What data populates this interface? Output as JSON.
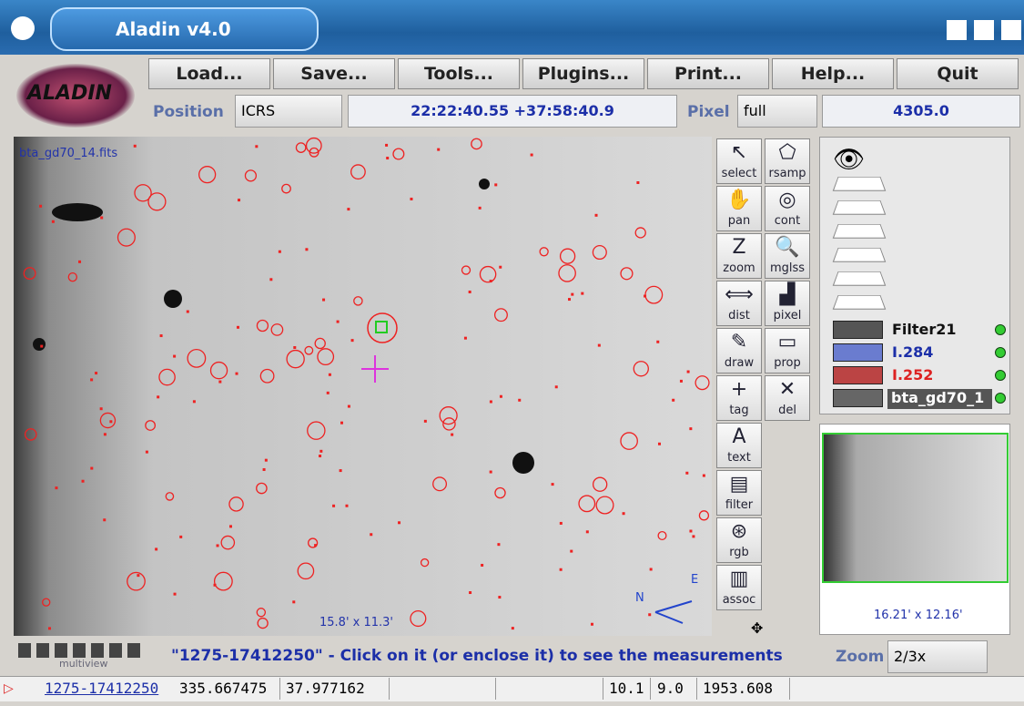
{
  "window": {
    "title": "Aladin v4.0"
  },
  "menu": [
    "Load...",
    "Save...",
    "Tools...",
    "Plugins...",
    "Print...",
    "Help...",
    "Quit"
  ],
  "logo": "ALADIN",
  "position": {
    "label": "Position",
    "frame": "ICRS",
    "coordinates": "22:22:40.55 +37:58:40.9"
  },
  "pixel": {
    "label": "Pixel",
    "mode": "full",
    "value": "4305.0"
  },
  "view": {
    "filename": "bta_gd70_14.fits",
    "size": "15.8' x 11.3'",
    "north": "N",
    "east": "E"
  },
  "tools": [
    "select",
    "rsamp",
    "pan",
    "cont",
    "zoom",
    "mglss",
    "dist",
    "pixel",
    "draw",
    "prop",
    "tag",
    "del",
    "text",
    "filter",
    "rgb",
    "assoc"
  ],
  "layers": [
    "Filter21",
    "I.284",
    "I.252",
    "bta_gd70_1"
  ],
  "preview": {
    "size": "16.21' x 12.16'"
  },
  "multiview": "multiview",
  "status": "\"1275-17412250\" - Click on it (or enclose it) to see the measurements",
  "zoom": {
    "label": "Zoom",
    "value": "2/3x"
  },
  "measurement": [
    "1275-17412250",
    "335.667475",
    "37.977162",
    "10.1",
    "9.0",
    "1953.608"
  ]
}
